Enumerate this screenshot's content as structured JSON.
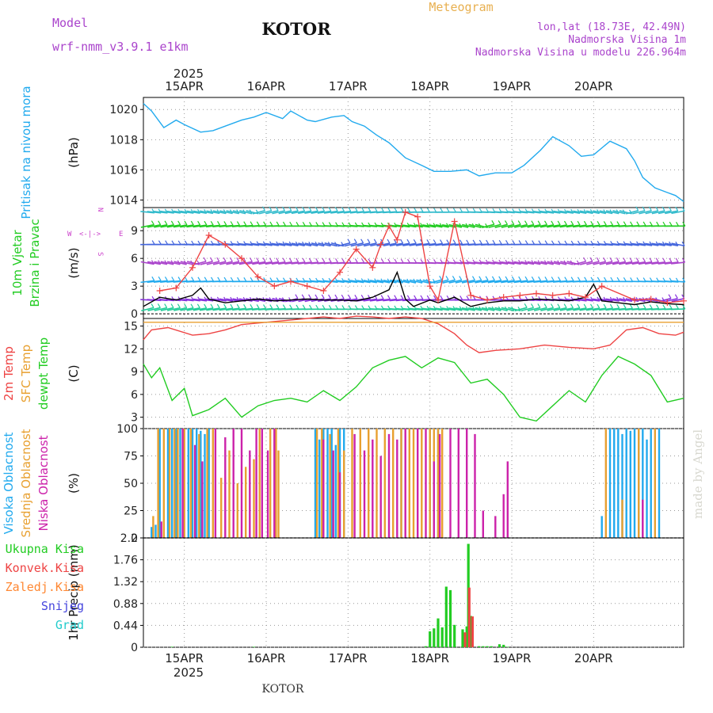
{
  "header": {
    "model_label": "Model",
    "model_name": "wrf-nmm_v3.9.1 e1km",
    "station_title": "KOTOR",
    "chart_kind": "Meteogram",
    "coords": "lon,lat (18.73E, 42.49N)",
    "elevation": "Nadmorska Visina 1m",
    "model_elevation": "Nadmorska Visina u modelu 226.964m",
    "footer_station": "KOTOR",
    "watermark": "made by Angel"
  },
  "colors": {
    "pressure": "#22aaee",
    "temp2m": "#ee4444",
    "sfctemp": "#e8a030",
    "dewpoint": "#22cc22",
    "wind_speed": "#000000",
    "wind_gust": "#ee4444",
    "cloud_high": "#22aaee",
    "cloud_mid": "#e8a030",
    "cloud_low": "#cc22aa",
    "precip_total": "#22cc22",
    "precip_conv": "#ee4444",
    "precip_frozen": "#ff8833",
    "snow": "#4444dd",
    "hail": "#22cccc",
    "header_purple": "#aa44cc",
    "header_orange": "#e8b050"
  },
  "chart_data": [
    {
      "type": "line",
      "panel": "pressure",
      "ylabel": "(hPa)",
      "side_labels": [
        "Pritisak na nivou mora"
      ],
      "ylim": [
        1013.5,
        1020.8
      ],
      "yticks": [
        1014,
        1016,
        1018,
        1020
      ],
      "grid": true,
      "series": [
        {
          "x": [
            0,
            0.1,
            0.25,
            0.4,
            0.5,
            0.7,
            0.85,
            1,
            1.2,
            1.35,
            1.5,
            1.7,
            1.8,
            1.9,
            2.0,
            2.1,
            2.3,
            2.45,
            2.55,
            2.7,
            2.85,
            3.0,
            3.2,
            3.4,
            3.55,
            3.75,
            3.95,
            4.1,
            4.3,
            4.5,
            4.65,
            4.85,
            5.0,
            5.2,
            5.35,
            5.5,
            5.7,
            5.9,
            6.0
          ],
          "values": [
            1020.4,
            1019.9,
            1018.8,
            1019.3,
            1019.0,
            1018.5,
            1018.6,
            1018.9,
            1019.3,
            1019.5,
            1019.8,
            1019.4,
            1019.9,
            1019.6,
            1019.3,
            1019.2,
            1019.5,
            1019.6,
            1019.2,
            1018.9,
            1018.3,
            1017.8,
            1016.8,
            1016.3,
            1015.9,
            1015.9,
            1016.0,
            1015.6,
            1015.8,
            1015.8,
            1016.3,
            1017.3,
            1018.2,
            1017.6,
            1016.9,
            1017.0,
            1017.9,
            1017.4,
            1016.6
          ]
        },
        {
          "x": [
            6.0,
            6.1,
            6.25,
            6.4,
            6.5,
            6.6
          ],
          "values": [
            1016.6,
            1015.5,
            1014.8,
            1014.5,
            1014.3,
            1013.9
          ]
        }
      ]
    },
    {
      "type": "line",
      "panel": "wind",
      "ylabel": "(m/s)",
      "side_labels": [
        "10m Vjetar",
        "Brzina i Pravac"
      ],
      "compass_labels": [
        "W",
        "<-|->",
        "E",
        "N",
        "S"
      ],
      "ylim": [
        -0.5,
        11.5
      ],
      "yticks": [
        0,
        3,
        6,
        9
      ],
      "grid": true,
      "barb_rows_ms": [
        0.5,
        1.5,
        3.5,
        5.5,
        7.5,
        9.5,
        11.0
      ],
      "series": [
        {
          "name": "speed",
          "x": [
            0,
            0.2,
            0.4,
            0.6,
            0.7,
            0.8,
            1.0,
            1.2,
            1.4,
            1.6,
            1.8,
            2.0,
            2.2,
            2.4,
            2.6,
            2.8,
            3.0,
            3.1,
            3.2,
            3.3,
            3.5,
            3.6,
            3.8,
            4.0,
            4.2,
            4.4,
            4.6,
            4.8,
            5.0,
            5.2,
            5.4,
            5.5,
            5.6,
            5.8,
            6.0,
            6.2,
            6.4,
            6.6
          ],
          "values": [
            0.8,
            1.8,
            1.5,
            2.0,
            2.8,
            1.6,
            1.2,
            1.4,
            1.6,
            1.4,
            1.5,
            1.6,
            1.5,
            1.5,
            1.4,
            1.8,
            2.6,
            4.5,
            1.6,
            0.8,
            1.5,
            1.2,
            1.8,
            0.8,
            1.2,
            1.4,
            1.4,
            1.6,
            1.5,
            1.4,
            1.8,
            3.2,
            1.4,
            1.2,
            1.0,
            1.3,
            1.1,
            1.0
          ]
        },
        {
          "name": "gust",
          "x": [
            0.2,
            0.4,
            0.6,
            0.8,
            1.0,
            1.2,
            1.4,
            1.6,
            1.8,
            2.0,
            2.2,
            2.4,
            2.6,
            2.8,
            2.9,
            3.0,
            3.1,
            3.2,
            3.35,
            3.5,
            3.6,
            3.8,
            4.0,
            4.2,
            4.4,
            4.6,
            4.8,
            5.0,
            5.2,
            5.4,
            5.6,
            6.0,
            6.2,
            6.4,
            6.6
          ],
          "values": [
            2.5,
            2.8,
            5.0,
            8.5,
            7.5,
            6.0,
            4.0,
            3.0,
            3.5,
            3.0,
            2.5,
            4.5,
            7.0,
            5.0,
            7.5,
            9.5,
            8.0,
            11.0,
            10.5,
            3.0,
            1.5,
            10.0,
            2.0,
            1.5,
            1.8,
            2.0,
            2.2,
            2.0,
            2.2,
            1.8,
            3.0,
            1.5,
            1.6,
            1.2,
            1.4
          ]
        }
      ]
    },
    {
      "type": "line",
      "panel": "temperature",
      "ylabel": "(C)",
      "side_labels": [
        "2m Temp",
        "SFC Temp",
        "dewpt Temp"
      ],
      "ylim": [
        1.5,
        16
      ],
      "yticks": [
        3,
        6,
        9,
        12,
        15
      ],
      "grid": true,
      "series": [
        {
          "name": "2m Temp",
          "x": [
            0,
            0.1,
            0.3,
            0.6,
            0.8,
            1.0,
            1.2,
            1.5,
            1.8,
            2.0,
            2.2,
            2.4,
            2.6,
            2.8,
            3.0,
            3.2,
            3.4,
            3.6,
            3.8,
            3.95,
            4.1,
            4.3,
            4.6,
            4.9,
            5.2,
            5.5,
            5.7,
            5.9,
            6.1,
            6.3,
            6.5,
            6.6
          ],
          "values": [
            13.2,
            14.5,
            14.8,
            13.8,
            14.0,
            14.5,
            15.2,
            15.5,
            15.8,
            16.0,
            16.2,
            16.0,
            16.3,
            16.2,
            16.0,
            16.2,
            16.0,
            15.3,
            14.0,
            12.5,
            11.5,
            11.8,
            12.0,
            12.5,
            12.2,
            12.0,
            12.5,
            14.5,
            14.8,
            14.0,
            13.8,
            14.2
          ]
        },
        {
          "name": "SFC Temp",
          "x": [
            0,
            6.6
          ],
          "values": [
            15.5,
            15.5
          ]
        },
        {
          "name": "dewpt Temp",
          "x": [
            0,
            0.1,
            0.2,
            0.35,
            0.5,
            0.6,
            0.8,
            1.0,
            1.2,
            1.4,
            1.6,
            1.8,
            2.0,
            2.2,
            2.4,
            2.6,
            2.8,
            3.0,
            3.2,
            3.4,
            3.6,
            3.8,
            4.0,
            4.2,
            4.4,
            4.6,
            4.8,
            5.0,
            5.2,
            5.4,
            5.6,
            5.8,
            6.0,
            6.2,
            6.4,
            6.6
          ],
          "values": [
            10.0,
            8.2,
            9.5,
            5.2,
            6.8,
            3.2,
            4.0,
            5.5,
            3.0,
            4.5,
            5.2,
            5.5,
            5.0,
            6.5,
            5.2,
            7.0,
            9.5,
            10.5,
            11.0,
            9.5,
            10.8,
            10.2,
            7.5,
            8.0,
            6.0,
            3.0,
            2.5,
            4.5,
            6.5,
            5.0,
            8.5,
            11.0,
            10.0,
            8.5,
            5.0,
            5.5
          ]
        }
      ]
    },
    {
      "type": "bar",
      "panel": "cloud",
      "ylabel": "(%)",
      "side_labels": [
        "Visoka Oblacnost",
        "Srednja Oblacnost",
        "Niska Oblacnost"
      ],
      "ylim": [
        0,
        100
      ],
      "yticks": [
        0,
        25,
        50,
        75,
        100
      ],
      "grid": true,
      "series": [
        {
          "name": "Visoka Oblacnost",
          "x": [
            0.1,
            0.15,
            0.2,
            0.3,
            0.35,
            0.4,
            0.45,
            0.55,
            0.6,
            0.65,
            0.7,
            0.75,
            0.8,
            2.1,
            2.15,
            2.2,
            2.25,
            2.3,
            2.35,
            2.4,
            2.45,
            3.15,
            3.5,
            3.6,
            5.6,
            5.7,
            5.75,
            5.8,
            5.85,
            5.9,
            5.95,
            6.0,
            6.05,
            6.1,
            6.15,
            6.2,
            6.3
          ],
          "values": [
            10,
            12,
            100,
            100,
            100,
            100,
            100,
            100,
            100,
            100,
            98,
            95,
            100,
            100,
            90,
            100,
            100,
            100,
            85,
            100,
            100,
            100,
            100,
            100,
            20,
            100,
            100,
            100,
            95,
            100,
            98,
            100,
            100,
            100,
            90,
            100,
            100
          ]
        },
        {
          "name": "Srednja Oblacnost",
          "x": [
            0.12,
            0.18,
            0.25,
            0.32,
            0.38,
            0.42,
            0.5,
            0.58,
            0.68,
            0.78,
            0.85,
            0.95,
            1.05,
            1.15,
            1.25,
            1.35,
            1.42,
            1.55,
            1.62,
            1.65,
            2.12,
            2.18,
            2.28,
            2.38,
            2.45,
            2.55,
            2.65,
            2.75,
            2.85,
            2.95,
            3.05,
            3.15,
            3.25,
            3.3,
            3.4,
            3.5,
            3.55,
            3.6,
            3.65,
            5.65,
            5.85,
            6.05,
            6.25
          ],
          "values": [
            20,
            100,
            100,
            100,
            100,
            100,
            100,
            100,
            95,
            100,
            100,
            55,
            80,
            50,
            65,
            72,
            100,
            100,
            100,
            80,
            100,
            100,
            95,
            100,
            80,
            100,
            100,
            100,
            100,
            100,
            100,
            100,
            100,
            100,
            100,
            100,
            100,
            100,
            100,
            100,
            35,
            100,
            100
          ]
        },
        {
          "name": "Niska Oblacnost",
          "x": [
            0.22,
            0.48,
            0.63,
            0.72,
            0.88,
            1.0,
            1.1,
            1.2,
            1.3,
            1.38,
            1.45,
            1.52,
            1.6,
            2.2,
            2.32,
            2.4,
            2.58,
            2.7,
            2.8,
            2.9,
            3.0,
            3.1,
            3.2,
            3.35,
            3.45,
            3.55,
            3.62,
            3.75,
            3.85,
            3.95,
            4.05,
            4.15,
            4.3,
            4.4,
            4.45,
            6.1
          ],
          "values": [
            15,
            100,
            85,
            70,
            100,
            92,
            100,
            100,
            80,
            100,
            100,
            80,
            100,
            90,
            80,
            60,
            95,
            80,
            90,
            75,
            95,
            90,
            100,
            100,
            100,
            70,
            95,
            100,
            100,
            100,
            95,
            25,
            20,
            40,
            70,
            35
          ]
        }
      ]
    },
    {
      "type": "bar",
      "panel": "precip",
      "ylabel": "1hr Precip (mm)",
      "side_labels": [
        "Ukupna Kisa",
        "Konvek.Kisa",
        "Zaledj.Kisa",
        "Snijeg",
        "Grad"
      ],
      "ylim": [
        0,
        2.2
      ],
      "yticks": [
        0,
        0.44,
        0.88,
        1.32,
        1.76,
        2.2
      ],
      "grid": true,
      "series": [
        {
          "name": "Ukupna Kisa",
          "x": [
            0.35,
            1.35,
            3.45,
            3.5,
            3.55,
            3.6,
            3.65,
            3.7,
            3.75,
            3.8,
            3.9,
            3.95,
            3.97,
            4.0,
            4.1,
            4.15,
            4.2,
            4.25,
            4.35,
            4.4,
            4.45
          ],
          "values": [
            0.01,
            0.01,
            0.02,
            0.32,
            0.38,
            0.58,
            0.4,
            1.22,
            1.15,
            0.45,
            0.36,
            0.42,
            2.08,
            0.63,
            0.02,
            0.02,
            0.02,
            0.02,
            0.06,
            0.05,
            0.01
          ]
        },
        {
          "name": "Konvek.Kisa",
          "x": [
            3.93,
            3.98,
            4.02
          ],
          "values": [
            0.3,
            1.2,
            0.62
          ]
        }
      ]
    }
  ],
  "time_axis": {
    "year_label": "2025",
    "day_labels": [
      "15APR",
      "16APR",
      "17APR",
      "18APR",
      "19APR",
      "20APR"
    ],
    "day_positions": [
      0.5,
      1.5,
      2.5,
      3.5,
      4.5,
      5.5
    ],
    "x_range_days": [
      0,
      6.6
    ]
  }
}
